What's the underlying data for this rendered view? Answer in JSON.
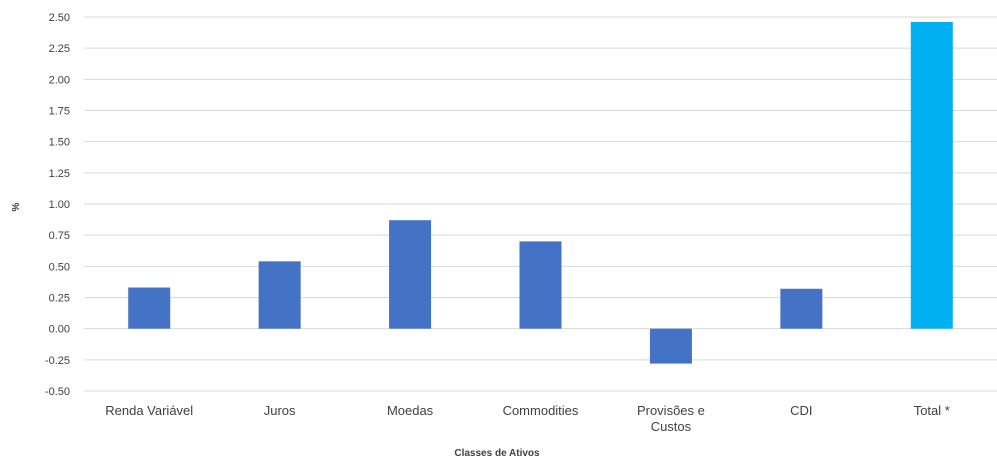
{
  "chart_data": {
    "type": "bar",
    "title": "",
    "xlabel": "Classes de Ativos",
    "ylabel": "%",
    "ylim": [
      -0.5,
      2.5
    ],
    "y_ticks": [
      "2.50",
      "2.25",
      "2.00",
      "1.75",
      "1.50",
      "1.25",
      "1.00",
      "0.75",
      "0.50",
      "0.25",
      "0.00",
      "-0.25",
      "-0.50"
    ],
    "categories": [
      [
        "Renda Variável"
      ],
      [
        "Juros"
      ],
      [
        "Moedas"
      ],
      [
        "Commodities"
      ],
      [
        "Provisões e",
        "Custos"
      ],
      [
        "CDI"
      ],
      [
        "Total *"
      ]
    ],
    "values": [
      0.33,
      0.54,
      0.87,
      0.7,
      -0.28,
      0.32,
      2.46
    ],
    "grid": true,
    "legend": "none",
    "colors": {
      "bar": "#4472C4",
      "total_bar": "#00B0F0",
      "grid": "#D9D9D9",
      "text": "#404040"
    }
  }
}
